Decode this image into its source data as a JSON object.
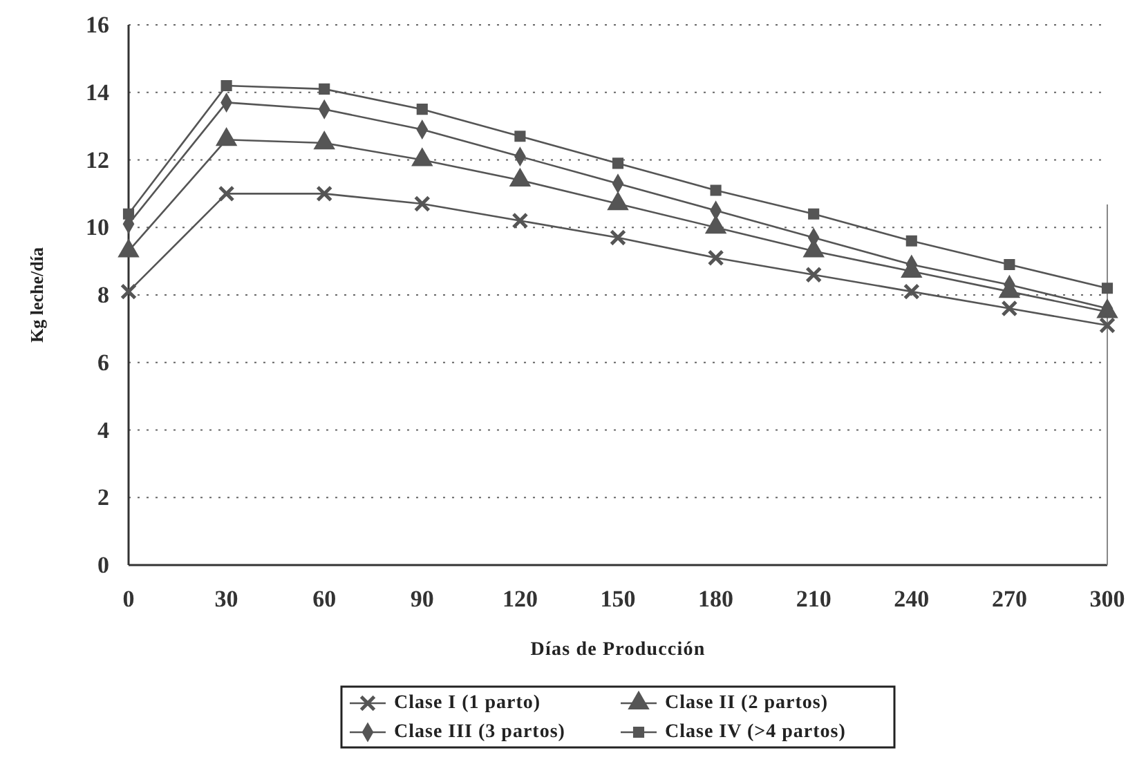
{
  "chart_data": {
    "type": "line",
    "xlabel": "Días de Producción",
    "ylabel": "Kg leche/día",
    "x": [
      0,
      30,
      60,
      90,
      120,
      150,
      180,
      210,
      240,
      270,
      300
    ],
    "xlim": [
      0,
      300
    ],
    "xticks": [
      0,
      30,
      60,
      90,
      120,
      150,
      180,
      210,
      240,
      270,
      300
    ],
    "ylim": [
      0,
      16
    ],
    "yticks": [
      0,
      2,
      4,
      6,
      8,
      10,
      12,
      14,
      16
    ],
    "grid": "y",
    "legend": "bottom",
    "series": [
      {
        "name": "Clase I (1 parto)",
        "color": "#555555",
        "marker": "cross",
        "values": [
          8.1,
          11.0,
          11.0,
          10.7,
          10.2,
          9.7,
          9.1,
          8.6,
          8.1,
          7.6,
          7.1
        ]
      },
      {
        "name": "Clase II (2 partos)",
        "color": "#555555",
        "marker": "triangle",
        "values": [
          9.3,
          12.6,
          12.5,
          12.0,
          11.4,
          10.7,
          10.0,
          9.3,
          8.7,
          8.1,
          7.5
        ]
      },
      {
        "name": "Clase III (3 partos)",
        "color": "#555555",
        "marker": "diamond",
        "values": [
          10.1,
          13.7,
          13.5,
          12.9,
          12.1,
          11.3,
          10.5,
          9.7,
          8.9,
          8.3,
          7.6
        ]
      },
      {
        "name": "Clase IV (>4 partos)",
        "color": "#555555",
        "marker": "square",
        "values": [
          10.4,
          14.2,
          14.1,
          13.5,
          12.7,
          11.9,
          11.1,
          10.4,
          9.6,
          8.9,
          8.2
        ]
      }
    ]
  }
}
